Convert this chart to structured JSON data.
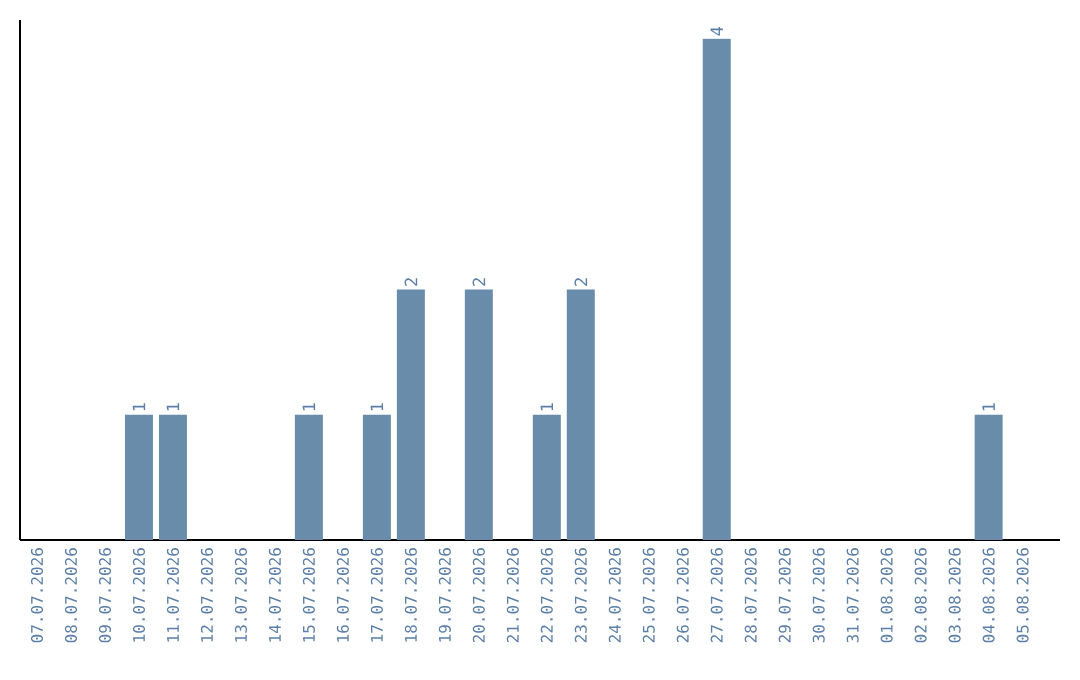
{
  "chart_data": {
    "type": "bar",
    "categories": [
      "07.07.2026",
      "08.07.2026",
      "09.07.2026",
      "10.07.2026",
      "11.07.2026",
      "12.07.2026",
      "13.07.2026",
      "14.07.2026",
      "15.07.2026",
      "16.07.2026",
      "17.07.2026",
      "18.07.2026",
      "19.07.2026",
      "20.07.2026",
      "21.07.2026",
      "22.07.2026",
      "23.07.2026",
      "24.07.2026",
      "25.07.2026",
      "26.07.2026",
      "27.07.2026",
      "28.07.2026",
      "29.07.2026",
      "30.07.2026",
      "31.07.2026",
      "01.08.2026",
      "02.08.2026",
      "03.08.2026",
      "04.08.2026",
      "05.08.2026"
    ],
    "values": [
      0,
      0,
      0,
      1,
      1,
      0,
      0,
      0,
      1,
      0,
      1,
      2,
      0,
      2,
      0,
      1,
      2,
      0,
      0,
      0,
      4,
      0,
      0,
      0,
      0,
      0,
      0,
      0,
      1,
      0
    ],
    "value_labels": [
      null,
      null,
      null,
      "1",
      "1",
      null,
      null,
      null,
      "1",
      null,
      "1",
      "2",
      null,
      "2",
      null,
      "1",
      "2",
      null,
      null,
      null,
      "4",
      null,
      null,
      null,
      null,
      null,
      null,
      null,
      "1",
      null
    ],
    "color": "#6a8cab",
    "ylim": [
      0,
      4.15
    ],
    "tick_labels": "x"
  }
}
